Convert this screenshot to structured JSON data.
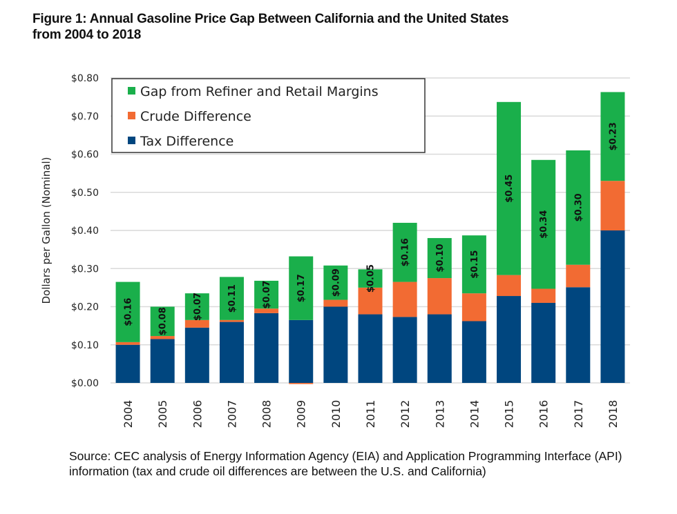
{
  "title_line1": "Figure 1: Annual Gasoline Price Gap Between California and the United States",
  "title_line2": "from 2004 to 2018",
  "source_text": "Source: CEC analysis of Energy Information Agency (EIA) and Application Programming Interface (API) information (tax and crude oil differences are between the U.S. and California)",
  "chart_data": {
    "type": "bar",
    "stacked": true,
    "title": "Annual Gasoline Price Gap Between California and the United States from 2004 to 2018",
    "xlabel": "",
    "ylabel": "Dollars per Gallon (Nominal)",
    "ylim": [
      0,
      0.8
    ],
    "yticks": [
      0.0,
      0.1,
      0.2,
      0.3,
      0.4,
      0.5,
      0.6,
      0.7,
      0.8
    ],
    "ytick_labels": [
      "$0.00",
      "$0.10",
      "$0.20",
      "$0.30",
      "$0.40",
      "$0.50",
      "$0.60",
      "$0.70",
      "$0.80"
    ],
    "grid": true,
    "legend_position": "top-left",
    "categories": [
      "2004",
      "2005",
      "2006",
      "2007",
      "2008",
      "2009",
      "2010",
      "2011",
      "2012",
      "2013",
      "2014",
      "2015",
      "2016",
      "2017",
      "2018"
    ],
    "series": [
      {
        "name": "Tax Difference",
        "color": "#00467f",
        "values": [
          0.1,
          0.115,
          0.145,
          0.16,
          0.183,
          0.165,
          0.2,
          0.18,
          0.173,
          0.18,
          0.162,
          0.228,
          0.21,
          0.251,
          0.4
        ]
      },
      {
        "name": "Crude Difference",
        "color": "#f26b33",
        "values": [
          0.007,
          0.008,
          0.02,
          0.005,
          0.012,
          -0.003,
          0.018,
          0.07,
          0.092,
          0.095,
          0.073,
          0.055,
          0.037,
          0.059,
          0.13
        ]
      },
      {
        "name": "Gap from Refiner and Retail Margins",
        "color": "#1aaf4b",
        "values": [
          0.158,
          0.077,
          0.07,
          0.113,
          0.073,
          0.167,
          0.09,
          0.048,
          0.155,
          0.105,
          0.152,
          0.454,
          0.338,
          0.3,
          0.233
        ]
      }
    ],
    "data_labels": {
      "series": "Gap from Refiner and Retail Margins",
      "labels": [
        "$0.16",
        "$0.08",
        "$0.07",
        "$0.11",
        "$0.07",
        "$0.17",
        "$0.09",
        "$0.05",
        "$0.16",
        "$0.10",
        "$0.15",
        "$0.45",
        "$0.34",
        "$0.30",
        "$0.23"
      ]
    },
    "legend": [
      "Gap from Refiner and Retail Margins",
      "Crude Difference",
      "Tax Difference"
    ]
  }
}
